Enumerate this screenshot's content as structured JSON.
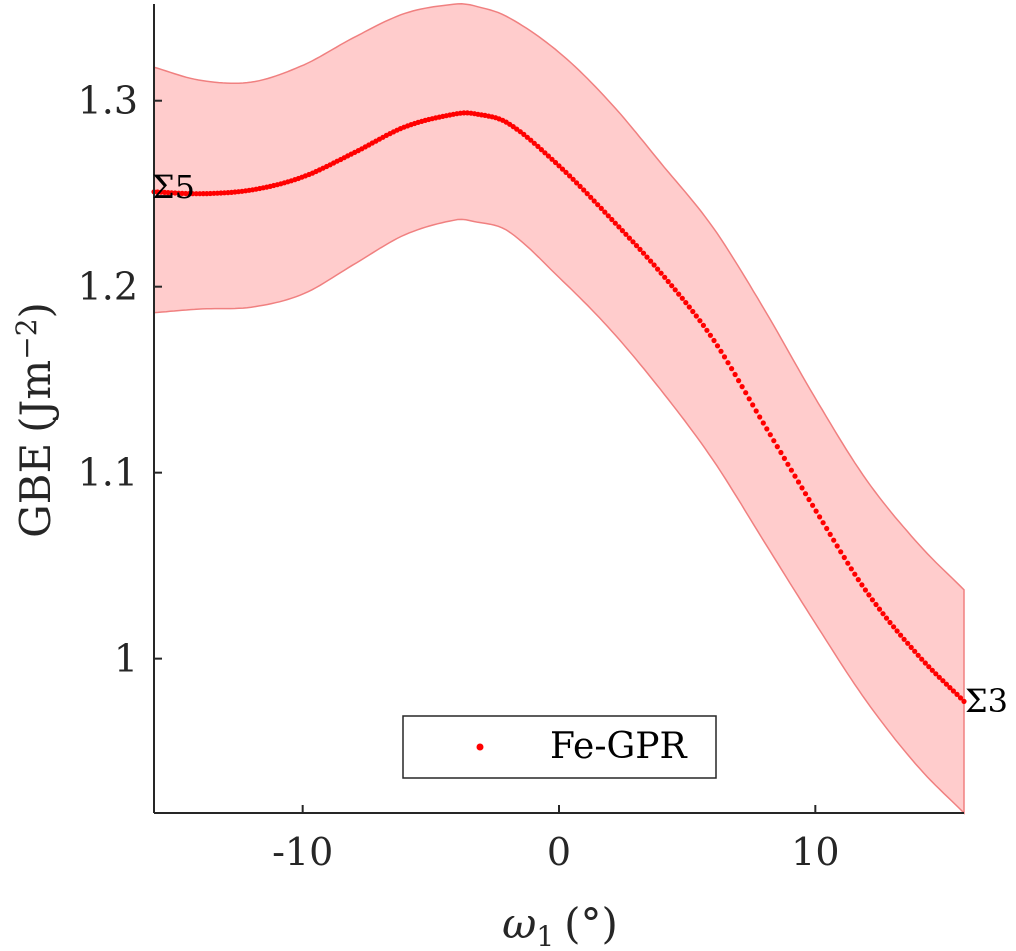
{
  "chart_data": {
    "type": "line",
    "title": "",
    "xlabel_main": "ω",
    "xlabel_sub": "1",
    "xlabel_unit": "(°)",
    "ylabel_main": "GBE",
    "ylabel_unit": "(Jm",
    "ylabel_sup": "−2",
    "ylabel_close": ")",
    "xlim": [
      -15.8,
      15.8
    ],
    "ylim": [
      0.917,
      1.352
    ],
    "x_ticks": [
      -10,
      0,
      10
    ],
    "x_tick_labels": [
      "-10",
      "0",
      "10"
    ],
    "y_ticks": [
      1.0,
      1.1,
      1.2,
      1.3
    ],
    "y_tick_labels": [
      "1",
      "1.1",
      "1.2",
      "1.3"
    ],
    "grid": false,
    "legend_position": "bottom-center",
    "series": [
      {
        "name": "Fe-GPR",
        "color": "#ff0000",
        "band_color": "#ffcccc",
        "band_edge_color": "#f08080",
        "x": [
          -15.8,
          -14,
          -12,
          -10,
          -8,
          -6,
          -4,
          -3.3,
          -2,
          0,
          2,
          4,
          6,
          8,
          10,
          12,
          14,
          15.8
        ],
        "y": [
          1.251,
          1.25,
          1.252,
          1.259,
          1.272,
          1.286,
          1.293,
          1.293,
          1.288,
          1.265,
          1.237,
          1.207,
          1.172,
          1.126,
          1.08,
          1.036,
          1.002,
          0.977
        ],
        "upper": [
          1.318,
          1.311,
          1.31,
          1.319,
          1.334,
          1.347,
          1.352,
          1.351,
          1.345,
          1.326,
          1.299,
          1.266,
          1.232,
          1.188,
          1.14,
          1.096,
          1.062,
          1.037
        ],
        "lower": [
          1.186,
          1.188,
          1.189,
          1.196,
          1.212,
          1.228,
          1.236,
          1.235,
          1.23,
          1.205,
          1.177,
          1.144,
          1.107,
          1.063,
          1.019,
          0.977,
          0.942,
          0.917
        ]
      }
    ],
    "annotations": [
      {
        "text": "Σ5",
        "x": -15.8,
        "y": 1.251
      },
      {
        "text": "Σ3",
        "x": 15.8,
        "y": 0.977
      }
    ]
  }
}
